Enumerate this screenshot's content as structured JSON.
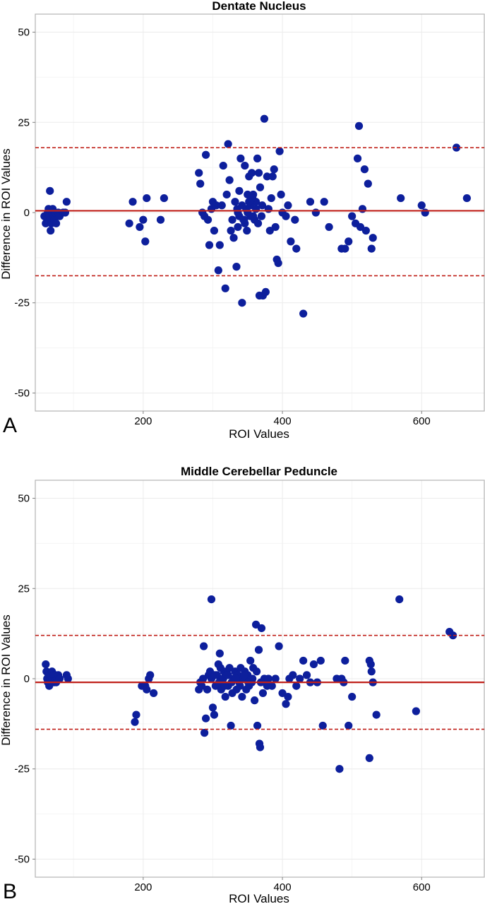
{
  "chart_data": [
    {
      "type": "scatter",
      "panel_label": "A",
      "title": "Dentate Nucleus",
      "xlabel": "ROI Values",
      "ylabel": "Difference in ROI Values",
      "xlim": [
        45,
        690
      ],
      "ylim": [
        -55,
        55
      ],
      "x_ticks": [
        200,
        400,
        600
      ],
      "y_ticks": [
        -50,
        -25,
        0,
        25,
        50
      ],
      "grid": true,
      "mean_line": 0.5,
      "limits_of_agreement": [
        18,
        -17.5
      ],
      "colors": {
        "points": "#0d1f9c",
        "mean_line": "#c0201a",
        "limit_lines": "#c0201a"
      },
      "points": [
        [
          58,
          -1
        ],
        [
          60,
          -3
        ],
        [
          62,
          -2
        ],
        [
          63,
          0
        ],
        [
          64,
          1
        ],
        [
          65,
          -1
        ],
        [
          66,
          6
        ],
        [
          67,
          -5
        ],
        [
          68,
          -3
        ],
        [
          69,
          0
        ],
        [
          70,
          1
        ],
        [
          71,
          -1
        ],
        [
          72,
          -2
        ],
        [
          73,
          0
        ],
        [
          75,
          -3
        ],
        [
          78,
          0
        ],
        [
          80,
          -1
        ],
        [
          85,
          0
        ],
        [
          88,
          0
        ],
        [
          90,
          3
        ],
        [
          180,
          -3
        ],
        [
          185,
          3
        ],
        [
          195,
          -4
        ],
        [
          200,
          -2
        ],
        [
          203,
          -8
        ],
        [
          205,
          4
        ],
        [
          225,
          -2
        ],
        [
          230,
          4
        ],
        [
          280,
          11
        ],
        [
          282,
          8
        ],
        [
          285,
          0
        ],
        [
          288,
          -1
        ],
        [
          290,
          16
        ],
        [
          293,
          -2
        ],
        [
          295,
          -9
        ],
        [
          298,
          1
        ],
        [
          300,
          3
        ],
        [
          302,
          -5
        ],
        [
          305,
          2
        ],
        [
          308,
          -16
        ],
        [
          310,
          -9
        ],
        [
          313,
          2
        ],
        [
          315,
          13
        ],
        [
          318,
          -21
        ],
        [
          320,
          5
        ],
        [
          322,
          19
        ],
        [
          324,
          9
        ],
        [
          326,
          -5
        ],
        [
          328,
          -2
        ],
        [
          330,
          -7
        ],
        [
          332,
          3
        ],
        [
          334,
          -15
        ],
        [
          336,
          0
        ],
        [
          338,
          6
        ],
        [
          340,
          15
        ],
        [
          342,
          -25
        ],
        [
          344,
          -2
        ],
        [
          346,
          13
        ],
        [
          348,
          1
        ],
        [
          350,
          5
        ],
        [
          352,
          10
        ],
        [
          354,
          -1
        ],
        [
          356,
          11
        ],
        [
          358,
          5
        ],
        [
          360,
          -2
        ],
        [
          362,
          3
        ],
        [
          364,
          15
        ],
        [
          366,
          11
        ],
        [
          367,
          -23
        ],
        [
          368,
          7
        ],
        [
          370,
          -1
        ],
        [
          372,
          -23
        ],
        [
          374,
          26
        ],
        [
          376,
          -22
        ],
        [
          378,
          10
        ],
        [
          380,
          1
        ],
        [
          382,
          -5
        ],
        [
          384,
          4
        ],
        [
          386,
          10
        ],
        [
          388,
          12
        ],
        [
          390,
          -4
        ],
        [
          392,
          -13
        ],
        [
          394,
          -14
        ],
        [
          396,
          17
        ],
        [
          398,
          5
        ],
        [
          400,
          0
        ],
        [
          405,
          -1
        ],
        [
          408,
          2
        ],
        [
          412,
          -8
        ],
        [
          418,
          -2
        ],
        [
          420,
          -10
        ],
        [
          430,
          -28
        ],
        [
          440,
          3
        ],
        [
          448,
          0
        ],
        [
          460,
          3
        ],
        [
          467,
          -4
        ],
        [
          485,
          -10
        ],
        [
          490,
          -10
        ],
        [
          495,
          -8
        ],
        [
          500,
          -1
        ],
        [
          505,
          -3
        ],
        [
          508,
          15
        ],
        [
          510,
          24
        ],
        [
          512,
          -4
        ],
        [
          515,
          1
        ],
        [
          518,
          12
        ],
        [
          520,
          -5
        ],
        [
          523,
          8
        ],
        [
          528,
          -10
        ],
        [
          530,
          -7
        ],
        [
          570,
          4
        ],
        [
          600,
          2
        ],
        [
          605,
          0
        ],
        [
          650,
          18
        ],
        [
          665,
          4
        ],
        [
          335,
          1
        ],
        [
          338,
          -1
        ],
        [
          342,
          2
        ],
        [
          346,
          -3
        ],
        [
          350,
          0
        ],
        [
          354,
          2
        ],
        [
          358,
          -1
        ],
        [
          362,
          1
        ],
        [
          345,
          -2
        ],
        [
          352,
          3
        ],
        [
          357,
          4
        ],
        [
          365,
          -3
        ],
        [
          371,
          2
        ],
        [
          336,
          -4
        ],
        [
          349,
          -5
        ]
      ]
    },
    {
      "type": "scatter",
      "panel_label": "B",
      "title": "Middle Cerebellar Peduncle",
      "xlabel": "ROI Values",
      "ylabel": "Difference in ROI Values",
      "xlim": [
        45,
        690
      ],
      "ylim": [
        -55,
        55
      ],
      "x_ticks": [
        200,
        400,
        600
      ],
      "y_ticks": [
        -50,
        -25,
        0,
        25,
        50
      ],
      "grid": true,
      "mean_line": -1,
      "limits_of_agreement": [
        12,
        -14
      ],
      "colors": {
        "points": "#0d1f9c",
        "mean_line": "#c0201a",
        "limit_lines": "#c0201a"
      },
      "points": [
        [
          60,
          4
        ],
        [
          61,
          2
        ],
        [
          62,
          0
        ],
        [
          63,
          -1
        ],
        [
          64,
          1
        ],
        [
          65,
          -2
        ],
        [
          66,
          0
        ],
        [
          67,
          1
        ],
        [
          68,
          -1
        ],
        [
          69,
          2
        ],
        [
          70,
          0
        ],
        [
          71,
          1
        ],
        [
          72,
          -1
        ],
        [
          73,
          0
        ],
        [
          74,
          1
        ],
        [
          75,
          -1
        ],
        [
          76,
          0
        ],
        [
          78,
          1
        ],
        [
          80,
          0
        ],
        [
          90,
          1
        ],
        [
          92,
          0
        ],
        [
          188,
          -12
        ],
        [
          190,
          -10
        ],
        [
          198,
          -2
        ],
        [
          203,
          -2
        ],
        [
          205,
          -3
        ],
        [
          208,
          0
        ],
        [
          210,
          1
        ],
        [
          215,
          -4
        ],
        [
          280,
          -3
        ],
        [
          282,
          -1
        ],
        [
          284,
          -2
        ],
        [
          286,
          0
        ],
        [
          287,
          9
        ],
        [
          288,
          -15
        ],
        [
          290,
          -11
        ],
        [
          292,
          -3
        ],
        [
          294,
          1
        ],
        [
          296,
          2
        ],
        [
          298,
          22
        ],
        [
          300,
          -8
        ],
        [
          302,
          -10
        ],
        [
          304,
          -2
        ],
        [
          306,
          1
        ],
        [
          308,
          4
        ],
        [
          310,
          7
        ],
        [
          312,
          -3
        ],
        [
          314,
          0
        ],
        [
          316,
          2
        ],
        [
          318,
          -5
        ],
        [
          320,
          1
        ],
        [
          322,
          -2
        ],
        [
          324,
          3
        ],
        [
          326,
          -13
        ],
        [
          328,
          -4
        ],
        [
          330,
          0
        ],
        [
          332,
          2
        ],
        [
          334,
          -3
        ],
        [
          336,
          1
        ],
        [
          338,
          -1
        ],
        [
          340,
          3
        ],
        [
          342,
          -5
        ],
        [
          344,
          0
        ],
        [
          346,
          2
        ],
        [
          348,
          -3
        ],
        [
          350,
          1
        ],
        [
          352,
          -2
        ],
        [
          354,
          5
        ],
        [
          356,
          -1
        ],
        [
          358,
          3
        ],
        [
          360,
          -6
        ],
        [
          362,
          15
        ],
        [
          364,
          -13
        ],
        [
          366,
          8
        ],
        [
          367,
          -18
        ],
        [
          368,
          -19
        ],
        [
          370,
          14
        ],
        [
          372,
          -4
        ],
        [
          374,
          0
        ],
        [
          376,
          -1
        ],
        [
          378,
          -2
        ],
        [
          380,
          0
        ],
        [
          385,
          -2
        ],
        [
          390,
          0
        ],
        [
          395,
          9
        ],
        [
          400,
          -4
        ],
        [
          405,
          -7
        ],
        [
          408,
          -5
        ],
        [
          410,
          0
        ],
        [
          415,
          1
        ],
        [
          420,
          -2
        ],
        [
          425,
          0
        ],
        [
          430,
          5
        ],
        [
          435,
          1
        ],
        [
          440,
          -1
        ],
        [
          445,
          4
        ],
        [
          450,
          -1
        ],
        [
          455,
          5
        ],
        [
          458,
          -13
        ],
        [
          478,
          0
        ],
        [
          482,
          -25
        ],
        [
          485,
          0
        ],
        [
          488,
          -1
        ],
        [
          490,
          5
        ],
        [
          495,
          -13
        ],
        [
          500,
          -5
        ],
        [
          525,
          5
        ],
        [
          527,
          4
        ],
        [
          528,
          2
        ],
        [
          530,
          -1
        ],
        [
          525,
          -22
        ],
        [
          535,
          -10
        ],
        [
          568,
          22
        ],
        [
          592,
          -9
        ],
        [
          640,
          13
        ],
        [
          645,
          12
        ],
        [
          298,
          0
        ],
        [
          303,
          1
        ],
        [
          309,
          -1
        ],
        [
          315,
          0
        ],
        [
          322,
          1
        ],
        [
          327,
          -1
        ],
        [
          333,
          0
        ],
        [
          339,
          -2
        ],
        [
          345,
          1
        ],
        [
          351,
          -1
        ],
        [
          357,
          0
        ],
        [
          363,
          2
        ],
        [
          369,
          -1
        ],
        [
          311,
          3
        ],
        [
          317,
          -2
        ]
      ]
    }
  ]
}
